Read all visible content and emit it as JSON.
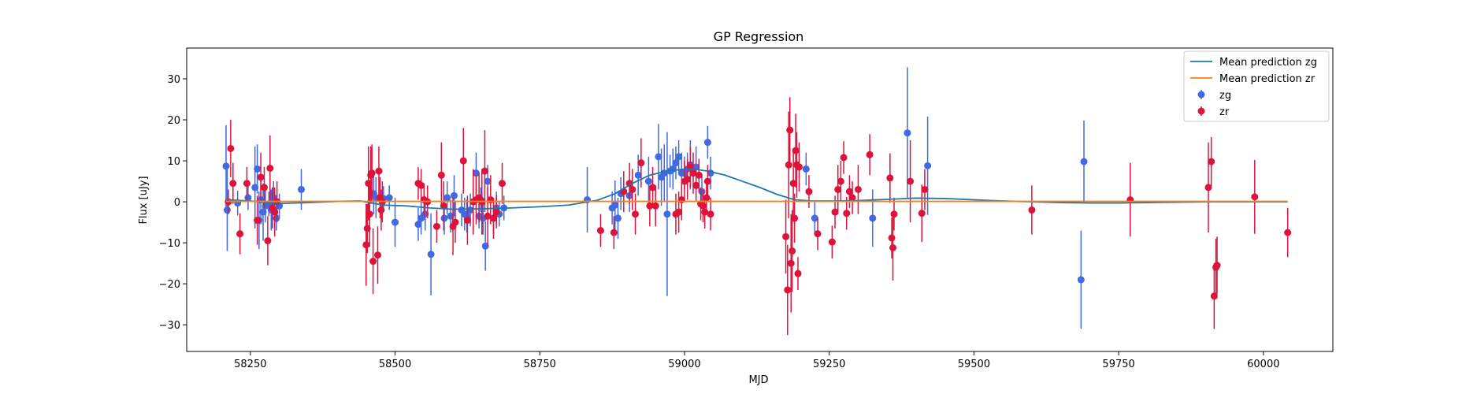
{
  "chart_data": {
    "type": "scatter",
    "title": "GP Regression",
    "xlabel": "MJD",
    "ylabel": "Flux [uJy]",
    "xlim": [
      58140,
      60120
    ],
    "ylim": [
      -36.5,
      37.5
    ],
    "xticks": [
      58250,
      58500,
      58750,
      59000,
      59250,
      59500,
      59750,
      60000
    ],
    "yticks": [
      -30,
      -20,
      -10,
      0,
      10,
      20,
      30
    ],
    "grid": false,
    "legend_position": "top-right",
    "colors": {
      "zg": "#4169e1",
      "zr": "#dc143c",
      "mean_zg": "#1f77b4",
      "mean_zr": "#ff7f0e"
    },
    "lines": [
      {
        "name": "Mean prediction zg",
        "x": [
          58208,
          58250,
          58300,
          58350,
          58400,
          58440,
          58480,
          58520,
          58560,
          58600,
          58650,
          58700,
          58750,
          58800,
          58850,
          58880,
          58910,
          58940,
          58970,
          59000,
          59020,
          59040,
          59070,
          59100,
          59130,
          59160,
          59190,
          59220,
          59260,
          59300,
          59350,
          59400,
          59450,
          59500,
          59550,
          59600,
          59650,
          59700,
          59750,
          59800,
          59850,
          59900,
          59950,
          60000,
          60042
        ],
        "y": [
          0.5,
          0.2,
          -0.4,
          -0.2,
          0.1,
          0.2,
          -0.8,
          -1.0,
          -1.5,
          -1.8,
          -1.7,
          -1.5,
          -1.2,
          -0.8,
          0.4,
          2.0,
          4.5,
          6.5,
          7.5,
          8.0,
          7.9,
          7.5,
          6.5,
          5.0,
          3.5,
          1.8,
          0.5,
          0.2,
          0.2,
          0.3,
          0.6,
          0.9,
          0.8,
          0.5,
          0.2,
          0.0,
          -0.2,
          -0.3,
          -0.3,
          -0.2,
          -0.1,
          0.0,
          0.0,
          0.0,
          0.0
        ]
      },
      {
        "name": "Mean prediction zr",
        "x": [
          58208,
          60042
        ],
        "y": [
          0.1,
          0.1
        ]
      }
    ],
    "series": [
      {
        "name": "zg",
        "x": [
          58208,
          58210,
          58228,
          58246,
          58258,
          58262,
          58265,
          58268,
          58272,
          58276,
          58282,
          58286,
          58290,
          58295,
          58300,
          58338,
          58463,
          58467,
          58480,
          58490,
          58500,
          58540,
          58545,
          58552,
          58562,
          58585,
          58590,
          58596,
          58602,
          58615,
          58620,
          58624,
          58630,
          58640,
          58645,
          58648,
          58652,
          58656,
          58660,
          58670,
          58675,
          58680,
          58688,
          58832,
          58875,
          58880,
          58885,
          58890,
          58905,
          58920,
          58938,
          58955,
          58960,
          58965,
          58970,
          58975,
          58980,
          58985,
          58990,
          58995,
          59000,
          59005,
          59010,
          59020,
          59030,
          59040,
          59045,
          59210,
          59225,
          59325,
          59385,
          59420,
          59685,
          59690
        ],
        "y": [
          8.7,
          -2.0,
          -0.3,
          1.0,
          3.5,
          8.0,
          -4.5,
          0.5,
          -2.5,
          -1.0,
          -0.5,
          -2.0,
          1.0,
          -4.0,
          -1.0,
          3.0,
          2.0,
          1.0,
          0.8,
          1.0,
          -5.0,
          -5.5,
          -4.0,
          -3.0,
          -12.8,
          -4.0,
          1.0,
          -3.5,
          1.5,
          -2.0,
          -3.0,
          -3.5,
          -2.0,
          7.0,
          -3.5,
          0.5,
          -4.0,
          -10.8,
          5.0,
          -4.0,
          -1.5,
          -3.0,
          -1.5,
          0.5,
          -1.5,
          -0.8,
          -4.0,
          2.0,
          1.5,
          6.5,
          5.0,
          11.0,
          6.0,
          7.0,
          -3.0,
          7.5,
          8.0,
          9.5,
          11.0,
          7.0,
          7.0,
          8.0,
          9.0,
          8.5,
          2.5,
          14.5,
          7.0,
          8.0,
          -4.0,
          -4.0,
          16.8,
          8.8,
          -19.0,
          9.8
        ],
        "yerr": [
          10,
          10,
          3,
          3,
          10,
          6,
          7,
          6,
          7,
          4,
          3,
          5,
          4,
          3,
          3,
          5,
          5,
          5,
          3,
          3,
          6,
          4,
          4,
          4,
          10,
          4,
          4,
          4,
          5,
          4,
          4,
          4,
          4,
          5,
          3,
          3,
          4,
          6,
          4,
          4,
          4,
          3,
          3,
          8,
          4,
          6,
          5,
          4,
          4,
          5,
          6,
          8,
          7,
          7,
          20,
          4,
          5,
          4,
          4,
          5,
          4,
          4,
          6,
          5,
          4,
          4,
          4,
          4,
          4,
          7,
          16,
          12,
          12,
          10
        ]
      },
      {
        "name": "zr",
        "x": [
          58212,
          58216,
          58220,
          58232,
          58244,
          58262,
          58268,
          58274,
          58280,
          58284,
          58288,
          58292,
          58296,
          58450,
          58452,
          58454,
          58456,
          58458,
          58460,
          58462,
          58470,
          58472,
          58474,
          58476,
          58478,
          58540,
          58545,
          58550,
          58556,
          58572,
          58580,
          58584,
          58600,
          58604,
          58618,
          58625,
          58635,
          58640,
          58645,
          58650,
          58655,
          58660,
          58665,
          58670,
          58675,
          58685,
          58855,
          58878,
          58895,
          58905,
          58910,
          58915,
          58925,
          58940,
          58945,
          58950,
          58985,
          58990,
          58995,
          59000,
          59005,
          59010,
          59015,
          59020,
          59025,
          59028,
          59032,
          59035,
          59038,
          59040,
          59045,
          59175,
          59178,
          59180,
          59182,
          59184,
          59186,
          59188,
          59190,
          59192,
          59194,
          59196,
          59198,
          59215,
          59230,
          59255,
          59260,
          59265,
          59270,
          59275,
          59280,
          59285,
          59290,
          59300,
          59320,
          59355,
          59358,
          59360,
          59362,
          59390,
          59410,
          59415,
          59600,
          59770,
          59905,
          59910,
          59915,
          59918,
          59920,
          59985,
          60042
        ],
        "y": [
          0.0,
          13.0,
          4.5,
          -7.8,
          4.5,
          -4.5,
          6.0,
          3.5,
          -9.5,
          8.2,
          -1.5,
          -2.5,
          0.0,
          -10.5,
          -6.5,
          4.5,
          -3.0,
          6.5,
          7.0,
          -14.5,
          -13.0,
          7.5,
          1.0,
          -2.0,
          0.0,
          4.5,
          4.0,
          0.5,
          0.0,
          -6.0,
          6.5,
          -1.0,
          -6.0,
          -5.0,
          10.0,
          -4.5,
          0.0,
          0.5,
          1.0,
          0.0,
          7.5,
          -3.5,
          0.5,
          -4.0,
          -2.5,
          4.5,
          -7.0,
          -7.5,
          2.5,
          4.5,
          3.0,
          -3.0,
          9.5,
          -1.0,
          3.5,
          -1.0,
          -3.0,
          -2.5,
          0.5,
          5.0,
          5.5,
          8.5,
          7.0,
          4.0,
          6.5,
          -0.5,
          -1.0,
          -2.5,
          1.0,
          5.0,
          -3.0,
          -8.5,
          -21.5,
          9.0,
          17.5,
          -15.0,
          -12.0,
          4.5,
          -4.0,
          12.5,
          9.0,
          -17.5,
          8.5,
          2.5,
          -7.8,
          -9.8,
          -2.5,
          3.0,
          5.0,
          10.8,
          -2.8,
          2.5,
          1.0,
          3.0,
          11.5,
          5.8,
          -8.8,
          -11.2,
          -3.0,
          5.0,
          -2.8,
          3.0,
          -2.0,
          0.5,
          3.5,
          9.8,
          -23.0,
          -16.0,
          -15.5,
          1.2,
          -7.5
        ],
        "yerr": [
          3,
          7,
          5,
          5,
          4,
          6,
          6,
          5,
          6,
          8,
          5,
          6,
          5,
          10,
          6,
          9,
          8,
          7,
          7,
          8,
          7,
          6,
          5,
          5,
          5,
          4,
          4,
          4,
          4,
          4,
          8,
          6,
          7,
          5,
          8,
          6,
          8,
          6,
          6,
          8,
          10,
          7,
          6,
          5,
          4,
          5,
          4,
          4,
          5,
          5,
          5,
          5,
          6,
          5,
          5,
          5,
          5,
          5,
          5,
          5,
          5,
          5,
          5,
          4,
          4,
          4,
          4,
          4,
          4,
          4,
          4,
          9,
          11,
          13,
          8,
          12,
          10,
          8,
          6,
          9,
          8,
          4,
          6,
          4,
          4,
          4,
          4,
          6,
          5,
          4,
          4,
          4,
          4,
          6,
          5,
          6,
          5,
          8,
          4,
          10,
          7,
          5,
          6,
          9,
          11,
          6,
          8,
          7,
          7,
          9,
          6
        ]
      }
    ]
  }
}
